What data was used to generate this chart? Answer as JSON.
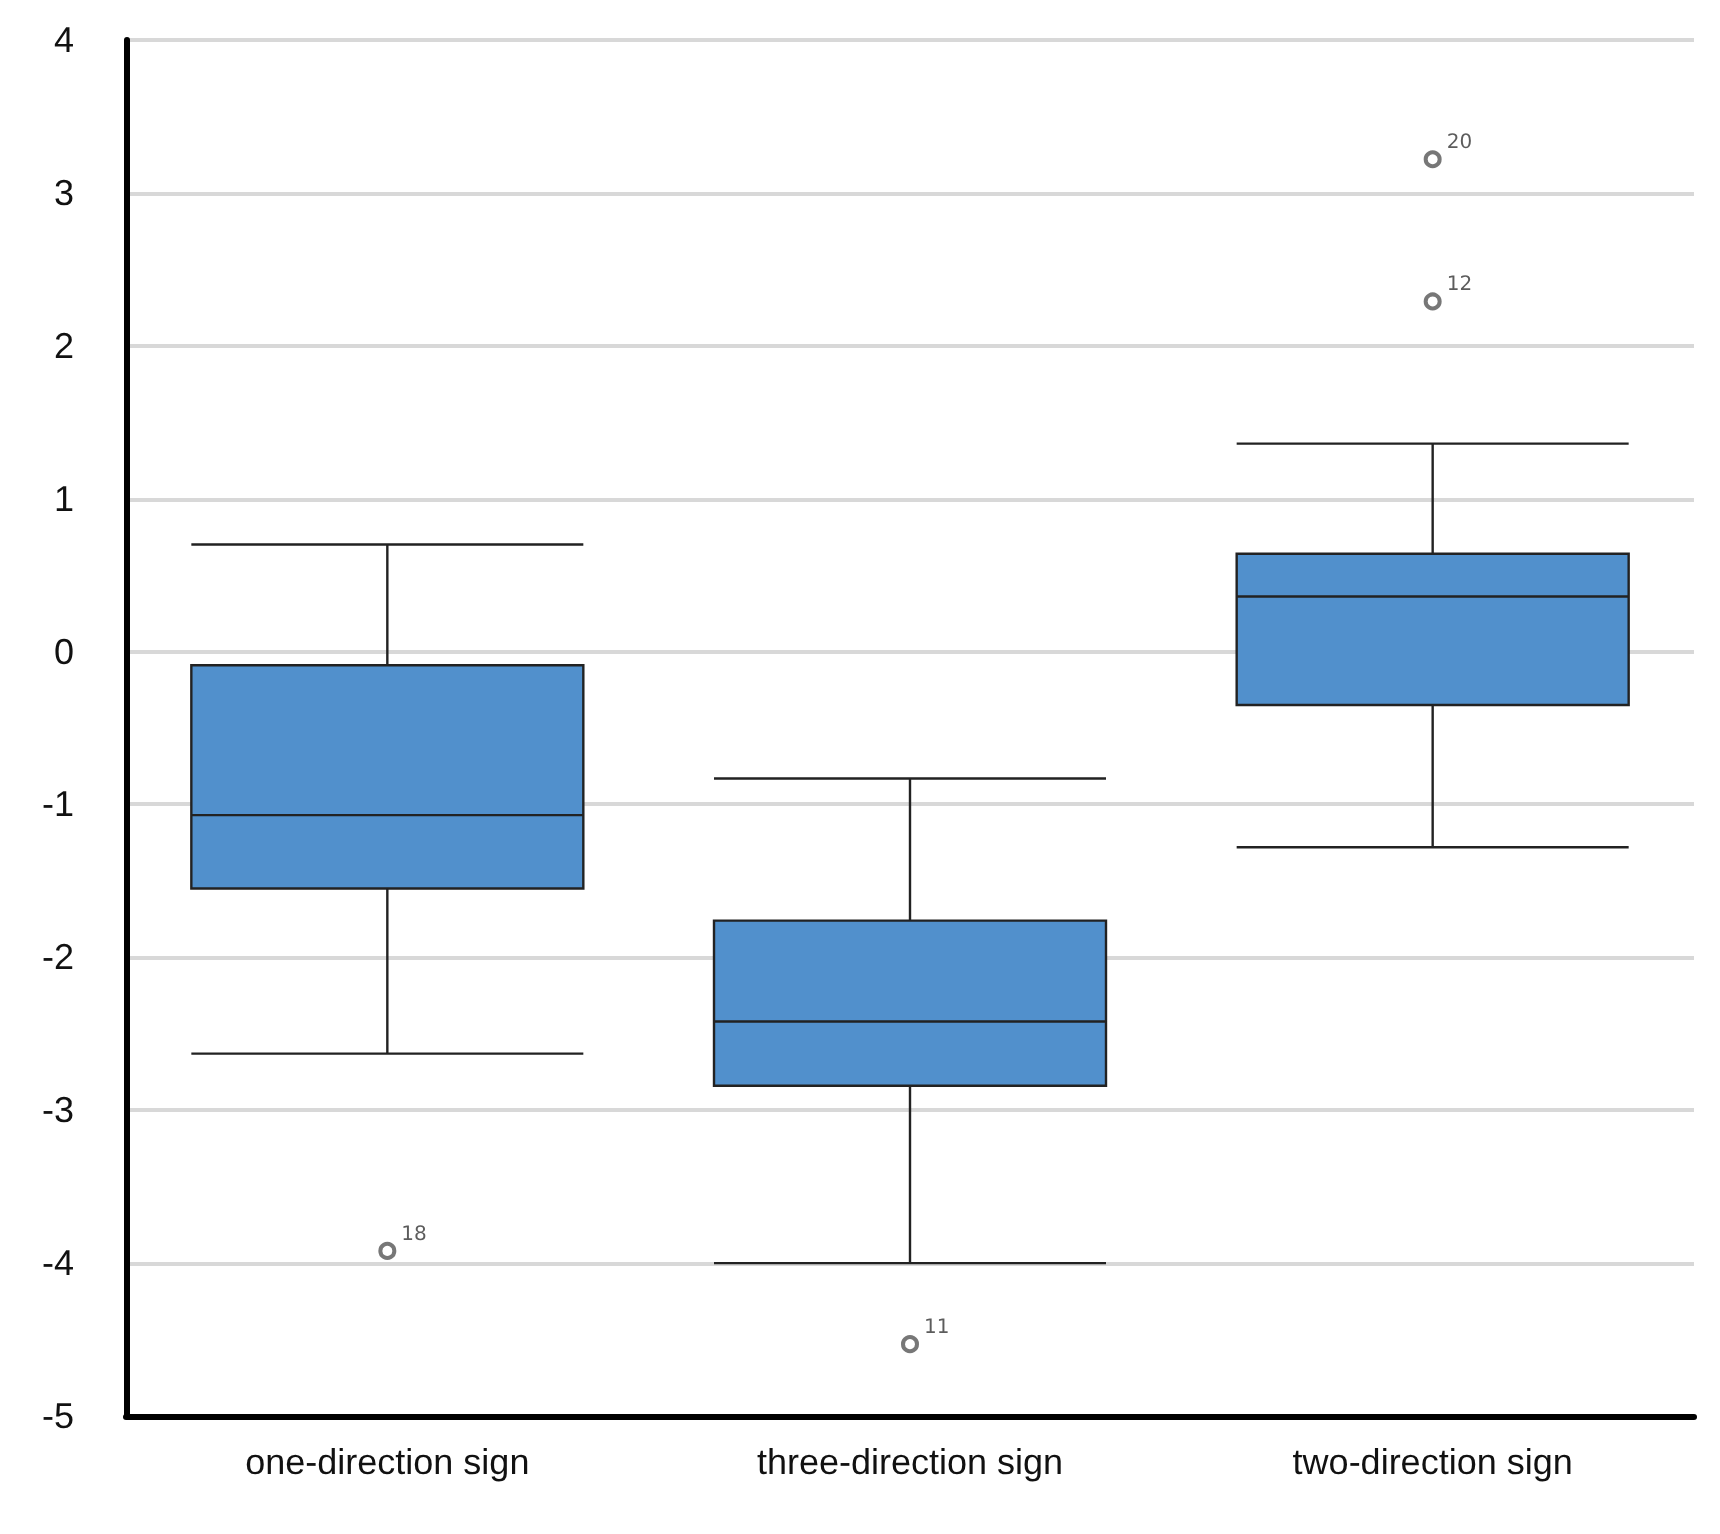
{
  "chart_data": {
    "type": "box",
    "categories": [
      "one-direction sign",
      "three-direction sign",
      "two-direction sign"
    ],
    "color": "#5190cc",
    "boxes": [
      {
        "low": -2.63,
        "q1": -1.55,
        "median": -1.07,
        "q3": -0.09,
        "high": 0.7,
        "outliers": [
          -3.92
        ]
      },
      {
        "low": -4.0,
        "q1": -2.84,
        "median": -2.42,
        "q3": -1.76,
        "high": -0.83,
        "outliers": [
          -4.53
        ]
      },
      {
        "low": -1.28,
        "q1": -0.35,
        "median": 0.36,
        "q3": 0.64,
        "high": 1.36,
        "outliers": [
          3.22,
          2.29
        ]
      }
    ],
    "ylim": [
      -5,
      4
    ],
    "yticks": [
      -5,
      -4,
      -3,
      -2,
      -1,
      0,
      1,
      2,
      3,
      4
    ],
    "grid": "y",
    "annotations": [
      "18",
      "11",
      "20",
      "12"
    ]
  }
}
